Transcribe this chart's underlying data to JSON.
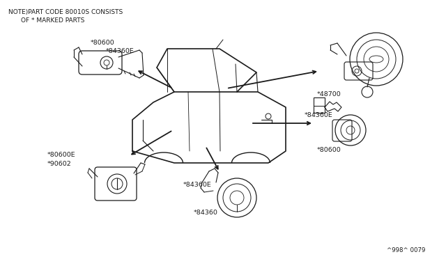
{
  "bg_color": "#ffffff",
  "line_color": "#1a1a1a",
  "text_color": "#1a1a1a",
  "note_line1": "NOTE)PART CODE 80010S CONSISTS",
  "note_line2": "OF * MARKED PARTS",
  "footnote": "^998^ 0079",
  "labels": {
    "top_left_upper": "*80600",
    "top_left_lower": "*84360E",
    "top_right": "*48700",
    "mid_right_upper": "*84360E",
    "mid_right_lower": "*80600",
    "bot_left_upper": "*80600E",
    "bot_left_lower": "*90602",
    "bot_mid_upper": "*84360E",
    "bot_mid_lower": "*84360"
  },
  "figsize": [
    6.4,
    3.72
  ],
  "dpi": 100
}
